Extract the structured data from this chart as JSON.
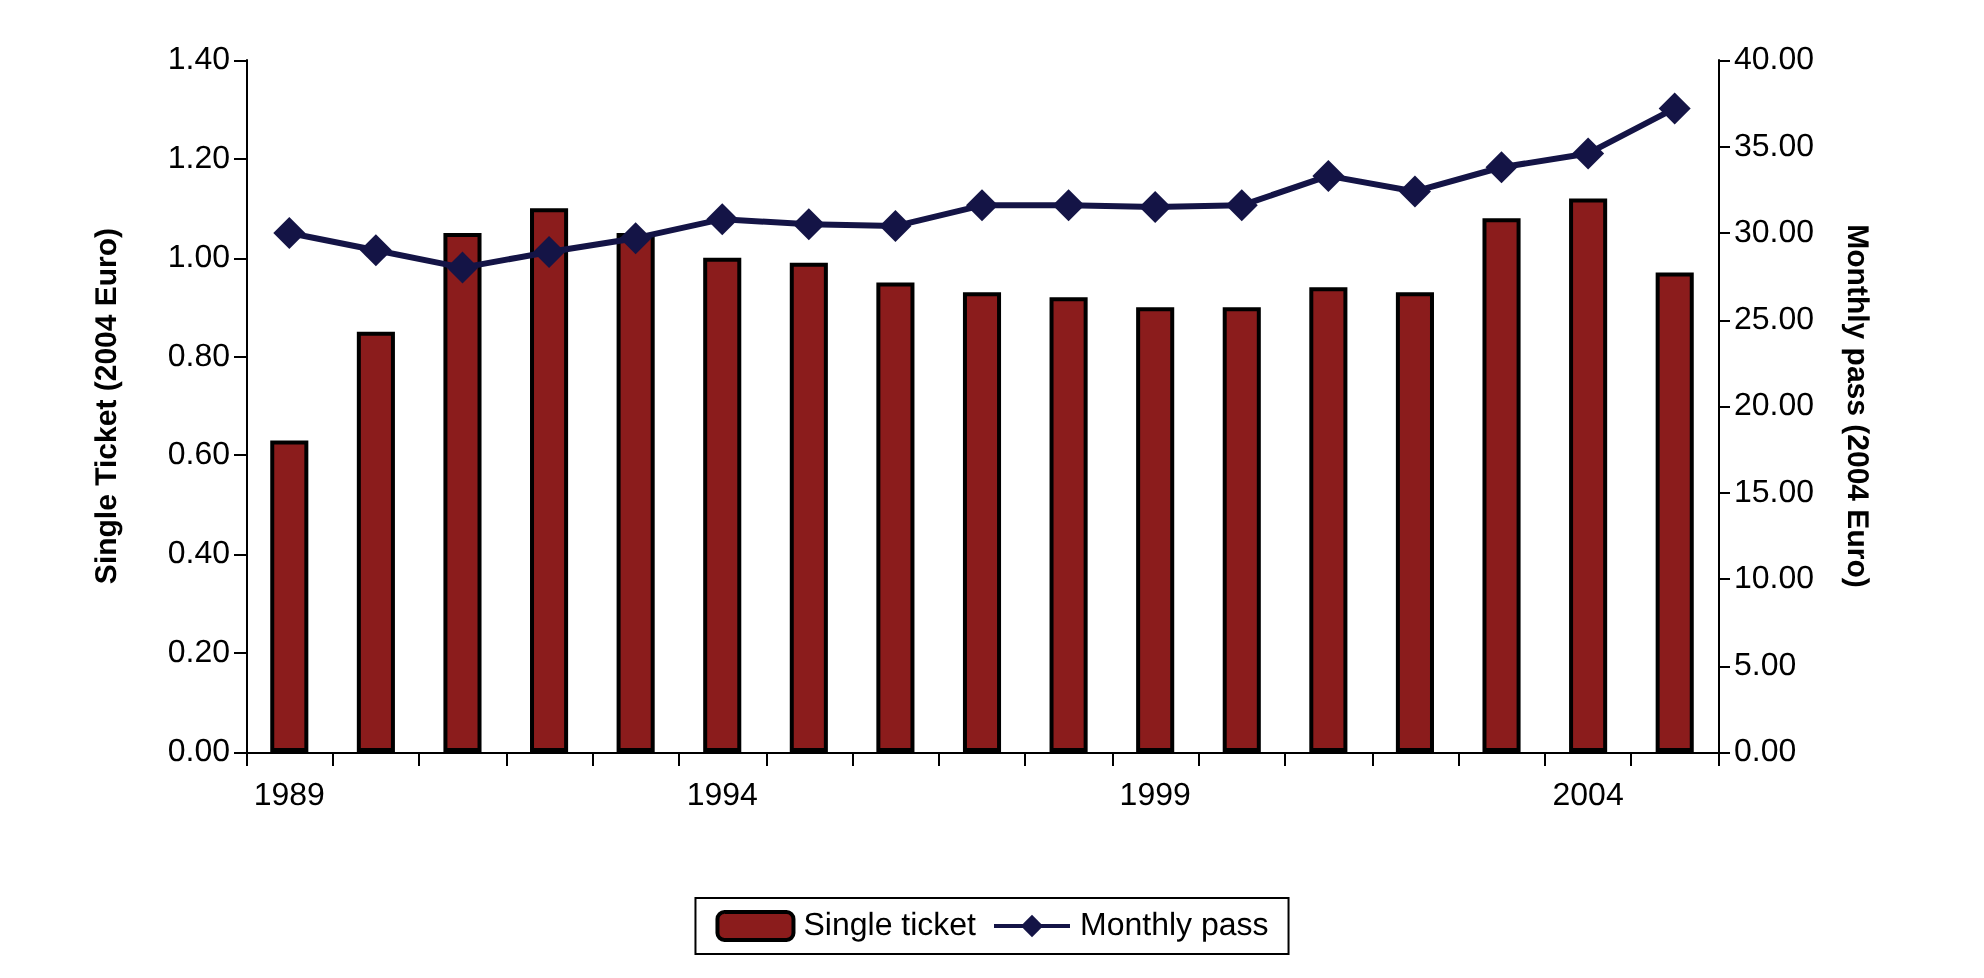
{
  "chart_data": {
    "type": "bar",
    "ylabel": "Single Ticket (2004 Euro)",
    "y2label": "Monthly pass (2004 Euro)",
    "categories": [
      "1989",
      null,
      null,
      null,
      null,
      "1994",
      null,
      null,
      null,
      null,
      "1999",
      null,
      null,
      null,
      null,
      "2004",
      null
    ],
    "series": [
      {
        "name": "Single ticket",
        "color": "#8b1c1c",
        "values": [
          0.63,
          0.85,
          1.05,
          1.1,
          1.05,
          1.0,
          0.99,
          0.95,
          0.93,
          0.92,
          0.9,
          0.9,
          0.94,
          0.93,
          1.08,
          1.12,
          0.97
        ]
      },
      {
        "name": "Monthly pass",
        "type": "line",
        "axis": "y2",
        "color": "#141446",
        "marker": "diamond",
        "values": [
          30.0,
          29.0,
          28.0,
          28.9,
          29.7,
          30.8,
          30.5,
          30.4,
          31.6,
          31.6,
          31.5,
          31.6,
          33.3,
          32.4,
          33.8,
          34.6,
          37.2
        ]
      }
    ],
    "ylim": [
      0,
      1.4
    ],
    "yticks": [
      {
        "value": 0,
        "label": "0.00"
      },
      {
        "value": 0.2,
        "label": "0.20"
      },
      {
        "value": 0.4,
        "label": "0.40"
      },
      {
        "value": 0.6,
        "label": "0.60"
      },
      {
        "value": 0.8,
        "label": "0.80"
      },
      {
        "value": 1,
        "label": "1.00"
      },
      {
        "value": 1.2,
        "label": "1.20"
      },
      {
        "value": 1.4,
        "label": "1.40"
      }
    ],
    "y2lim": [
      0,
      40
    ],
    "y2ticks": [
      {
        "value": 0,
        "label": "0.00"
      },
      {
        "value": 5,
        "label": "5.00"
      },
      {
        "value": 10,
        "label": "10.00"
      },
      {
        "value": 15,
        "label": "15.00"
      },
      {
        "value": 20,
        "label": "20.00"
      },
      {
        "value": 25,
        "label": "25.00"
      },
      {
        "value": 30,
        "label": "30.00"
      },
      {
        "value": 35,
        "label": "35.00"
      },
      {
        "value": 40,
        "label": "40.00"
      }
    ],
    "grid": false,
    "legend": "bottom"
  }
}
